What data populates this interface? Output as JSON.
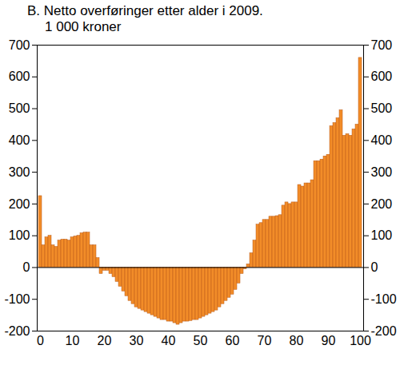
{
  "chart_data": {
    "type": "bar",
    "title": "B.  Netto overføringer etter alder i 2009.",
    "subtitle": "1 000 kroner",
    "categories": [
      0,
      null,
      null,
      null,
      null,
      null,
      null,
      null,
      null,
      null,
      10,
      null,
      null,
      null,
      null,
      null,
      null,
      null,
      null,
      null,
      20,
      null,
      null,
      null,
      null,
      null,
      null,
      null,
      null,
      null,
      30,
      null,
      null,
      null,
      null,
      null,
      null,
      null,
      null,
      null,
      40,
      null,
      null,
      null,
      null,
      null,
      null,
      null,
      null,
      null,
      50,
      null,
      null,
      null,
      null,
      null,
      null,
      null,
      null,
      null,
      60,
      null,
      null,
      null,
      null,
      null,
      null,
      null,
      null,
      null,
      70,
      null,
      null,
      null,
      null,
      null,
      null,
      null,
      null,
      null,
      80,
      null,
      null,
      null,
      null,
      null,
      null,
      null,
      null,
      null,
      90,
      null,
      null,
      null,
      null,
      null,
      null,
      null,
      null,
      null,
      100
    ],
    "values": [
      225,
      70,
      95,
      100,
      70,
      65,
      85,
      88,
      88,
      85,
      95,
      98,
      100,
      108,
      110,
      110,
      70,
      70,
      30,
      -20,
      -10,
      -10,
      -20,
      -30,
      -45,
      -60,
      -75,
      -90,
      -105,
      -115,
      -125,
      -130,
      -135,
      -140,
      -145,
      -150,
      -155,
      -160,
      -165,
      -165,
      -170,
      -170,
      -175,
      -180,
      -175,
      -170,
      -170,
      -168,
      -165,
      -165,
      -160,
      -155,
      -150,
      -145,
      -140,
      -135,
      -125,
      -115,
      -105,
      -95,
      -85,
      -70,
      -50,
      -20,
      -5,
      10,
      45,
      85,
      135,
      140,
      150,
      150,
      160,
      160,
      162,
      165,
      195,
      205,
      200,
      205,
      205,
      260,
      255,
      265,
      265,
      275,
      335,
      335,
      340,
      350,
      355,
      445,
      455,
      470,
      495,
      415,
      420,
      415,
      435,
      450,
      660
    ],
    "color": "#f28c28",
    "ylim": [
      -200,
      700
    ],
    "yticks": [
      -200,
      -100,
      0,
      100,
      200,
      300,
      400,
      500,
      600,
      700
    ]
  }
}
